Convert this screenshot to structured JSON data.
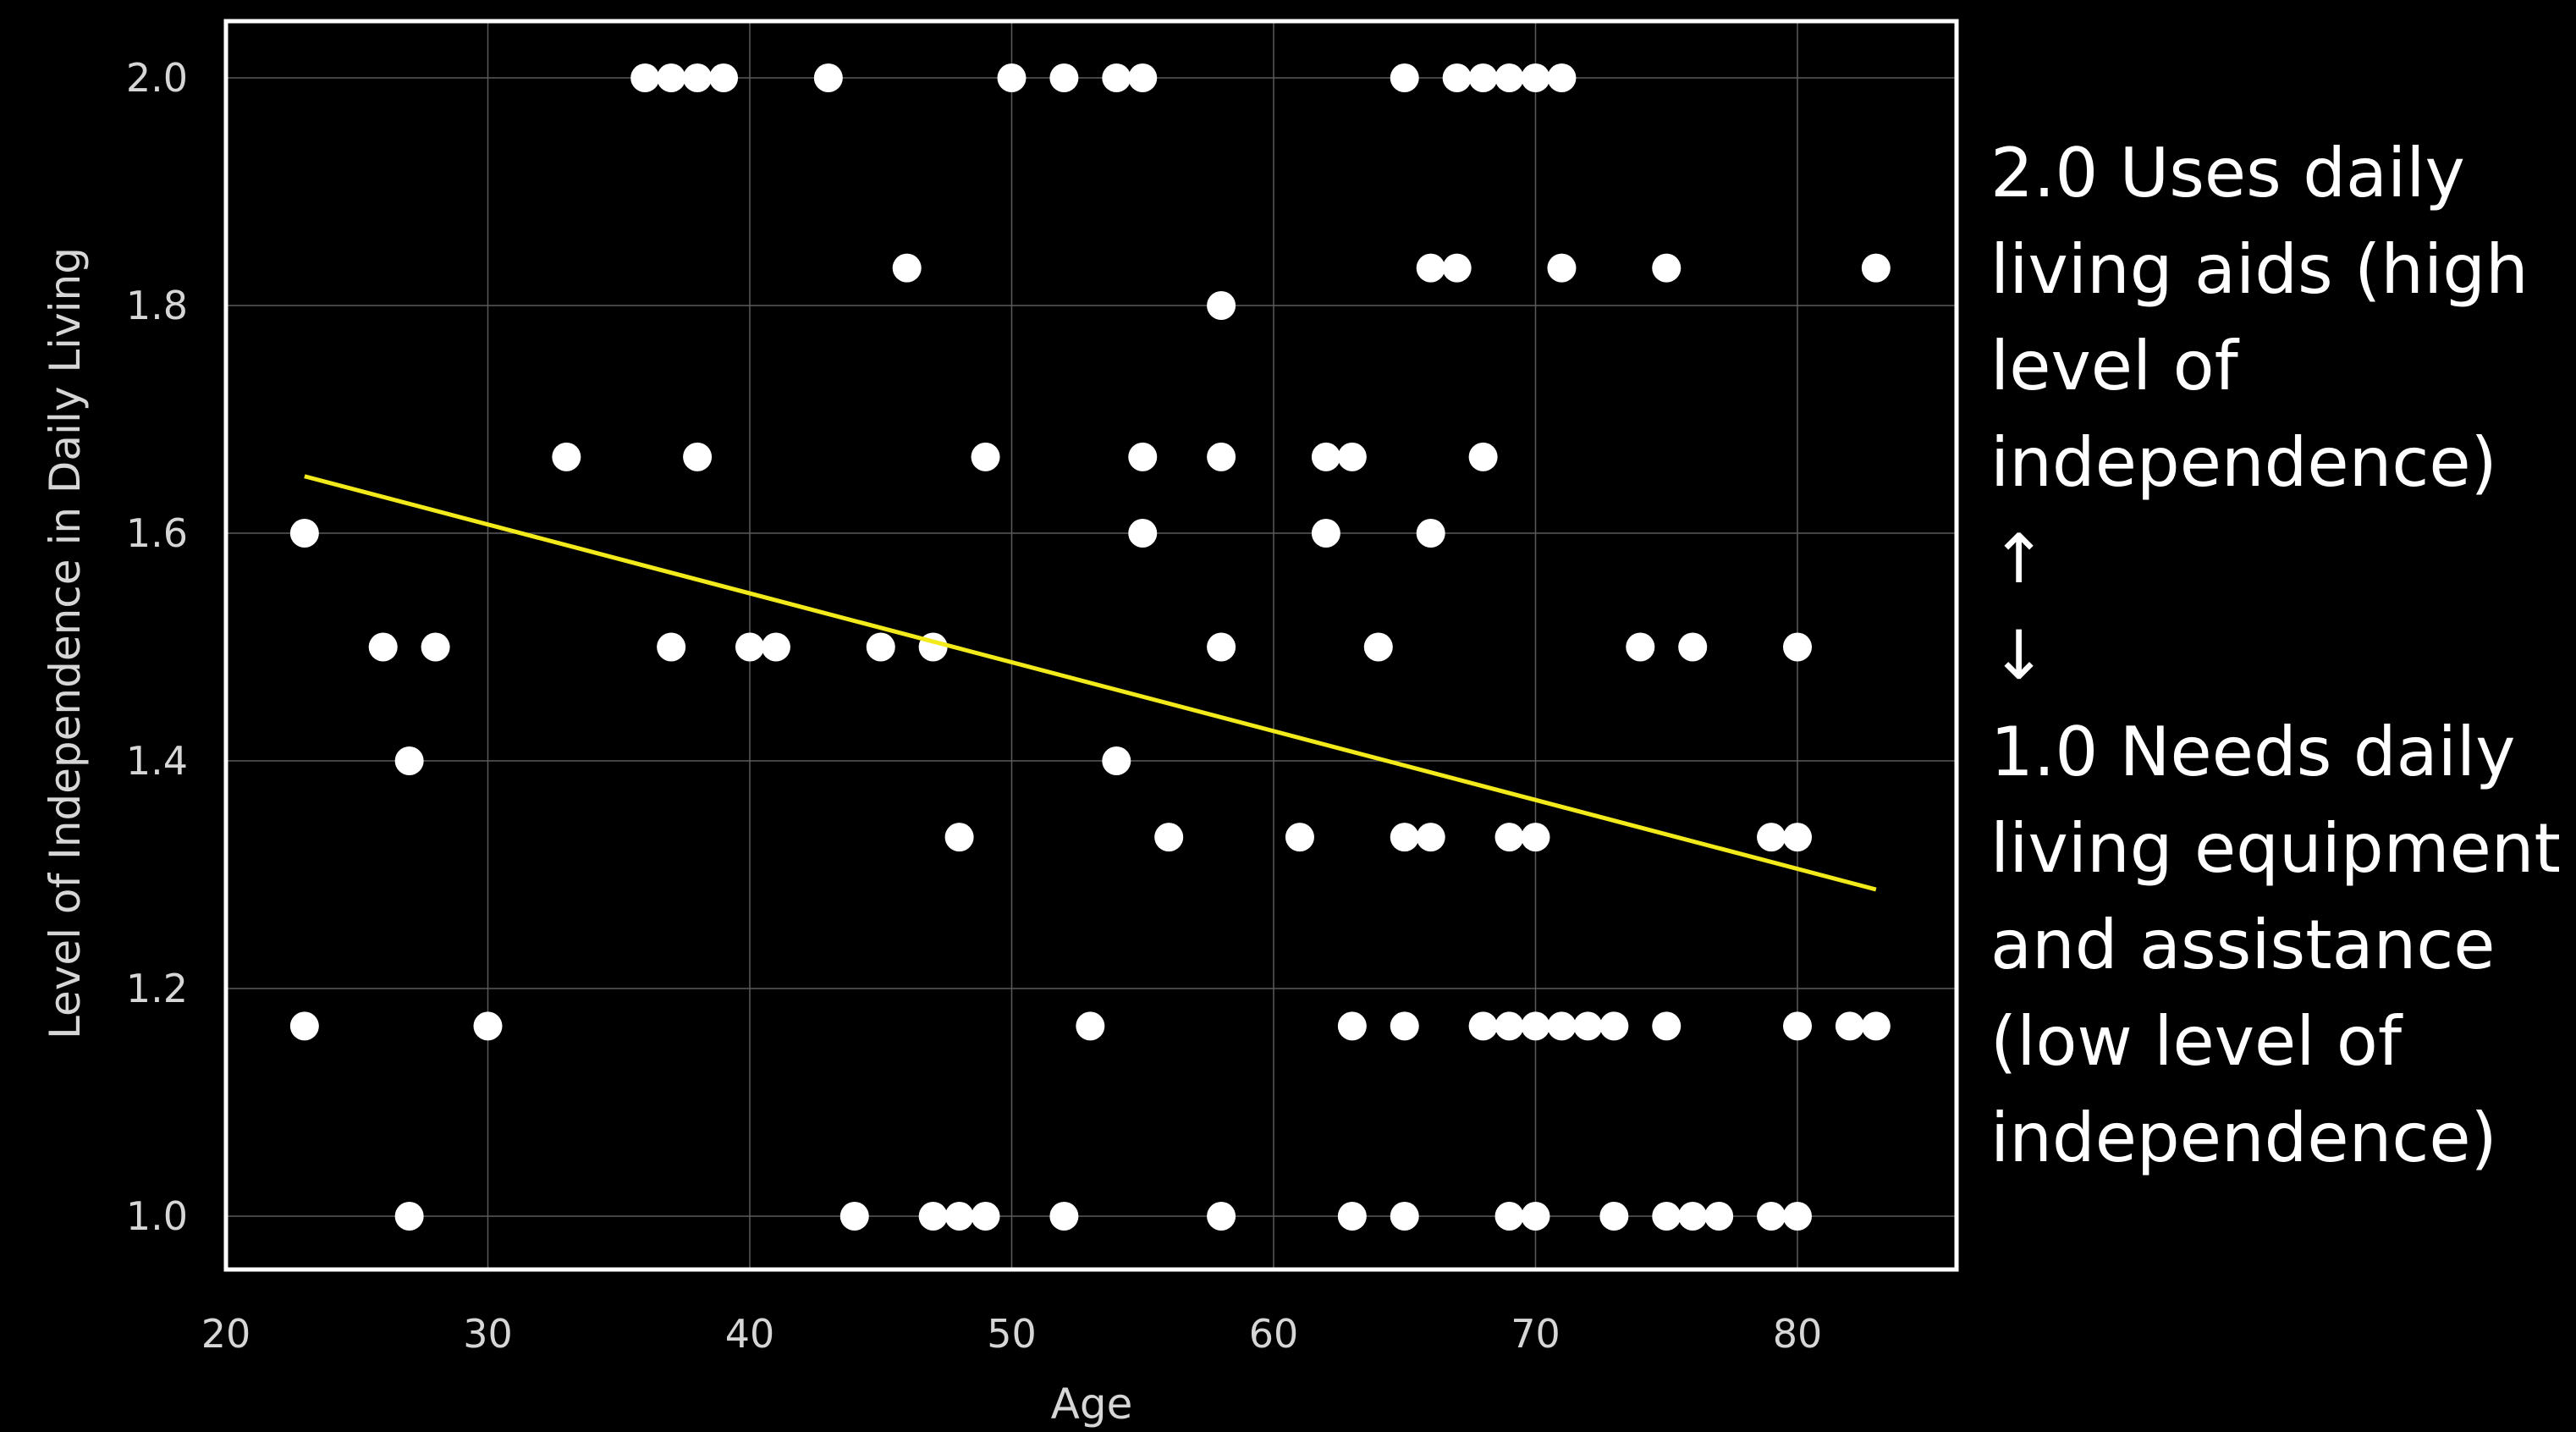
{
  "colors": {
    "background": "#000000",
    "points": "#ffffff",
    "trend_line": "#f2ea1a",
    "grid": "#5a5a5a",
    "frame": "#ffffff"
  },
  "side_note": {
    "lines": [
      "2.0 Uses daily",
      "living aids (high",
      "level of",
      "independence)",
      "↑",
      "↓",
      "1.0 Needs daily",
      "living equipment",
      "and assistance",
      "(low level of",
      "independence)"
    ]
  },
  "chart_data": {
    "type": "scatter",
    "title": "",
    "xlabel": "Age",
    "ylabel": "Level of Independence in Daily Living",
    "xlim": [
      20,
      86
    ],
    "ylim": [
      0.95,
      2.05
    ],
    "x_ticks": [
      "20",
      "30",
      "40",
      "50",
      "60",
      "70",
      "80"
    ],
    "y_ticks": [
      "1.0",
      "1.2",
      "1.4",
      "1.6",
      "1.8",
      "2.0"
    ],
    "grid": true,
    "legend": "none",
    "points": [
      [
        36,
        2.0
      ],
      [
        37,
        2.0
      ],
      [
        38,
        2.0
      ],
      [
        39,
        2.0
      ],
      [
        43,
        2.0
      ],
      [
        50,
        2.0
      ],
      [
        52,
        2.0
      ],
      [
        54,
        2.0
      ],
      [
        55,
        2.0
      ],
      [
        65,
        2.0
      ],
      [
        67,
        2.0
      ],
      [
        68,
        2.0
      ],
      [
        69,
        2.0
      ],
      [
        70,
        2.0
      ],
      [
        71,
        2.0
      ],
      [
        46,
        1.833
      ],
      [
        66,
        1.833
      ],
      [
        67,
        1.833
      ],
      [
        71,
        1.833
      ],
      [
        75,
        1.833
      ],
      [
        83,
        1.833
      ],
      [
        58,
        1.8
      ],
      [
        33,
        1.667
      ],
      [
        38,
        1.667
      ],
      [
        49,
        1.667
      ],
      [
        55,
        1.667
      ],
      [
        58,
        1.667
      ],
      [
        62,
        1.667
      ],
      [
        63,
        1.667
      ],
      [
        68,
        1.667
      ],
      [
        23,
        1.6
      ],
      [
        55,
        1.6
      ],
      [
        62,
        1.6
      ],
      [
        66,
        1.6
      ],
      [
        26,
        1.5
      ],
      [
        28,
        1.5
      ],
      [
        37,
        1.5
      ],
      [
        40,
        1.5
      ],
      [
        41,
        1.5
      ],
      [
        45,
        1.5
      ],
      [
        47,
        1.5
      ],
      [
        58,
        1.5
      ],
      [
        64,
        1.5
      ],
      [
        74,
        1.5
      ],
      [
        76,
        1.5
      ],
      [
        80,
        1.5
      ],
      [
        27,
        1.4
      ],
      [
        54,
        1.4
      ],
      [
        48,
        1.333
      ],
      [
        56,
        1.333
      ],
      [
        61,
        1.333
      ],
      [
        65,
        1.333
      ],
      [
        66,
        1.333
      ],
      [
        69,
        1.333
      ],
      [
        70,
        1.333
      ],
      [
        79,
        1.333
      ],
      [
        80,
        1.333
      ],
      [
        23,
        1.167
      ],
      [
        30,
        1.167
      ],
      [
        53,
        1.167
      ],
      [
        63,
        1.167
      ],
      [
        65,
        1.167
      ],
      [
        68,
        1.167
      ],
      [
        69,
        1.167
      ],
      [
        70,
        1.167
      ],
      [
        71,
        1.167
      ],
      [
        72,
        1.167
      ],
      [
        73,
        1.167
      ],
      [
        75,
        1.167
      ],
      [
        80,
        1.167
      ],
      [
        82,
        1.167
      ],
      [
        83,
        1.167
      ],
      [
        27,
        1.0
      ],
      [
        44,
        1.0
      ],
      [
        47,
        1.0
      ],
      [
        48,
        1.0
      ],
      [
        49,
        1.0
      ],
      [
        52,
        1.0
      ],
      [
        58,
        1.0
      ],
      [
        63,
        1.0
      ],
      [
        65,
        1.0
      ],
      [
        69,
        1.0
      ],
      [
        70,
        1.0
      ],
      [
        73,
        1.0
      ],
      [
        75,
        1.0
      ],
      [
        76,
        1.0
      ],
      [
        77,
        1.0
      ],
      [
        79,
        1.0
      ],
      [
        80,
        1.0
      ]
    ],
    "trend_line": {
      "x": [
        23,
        83
      ],
      "y": [
        1.65,
        1.287
      ]
    }
  }
}
